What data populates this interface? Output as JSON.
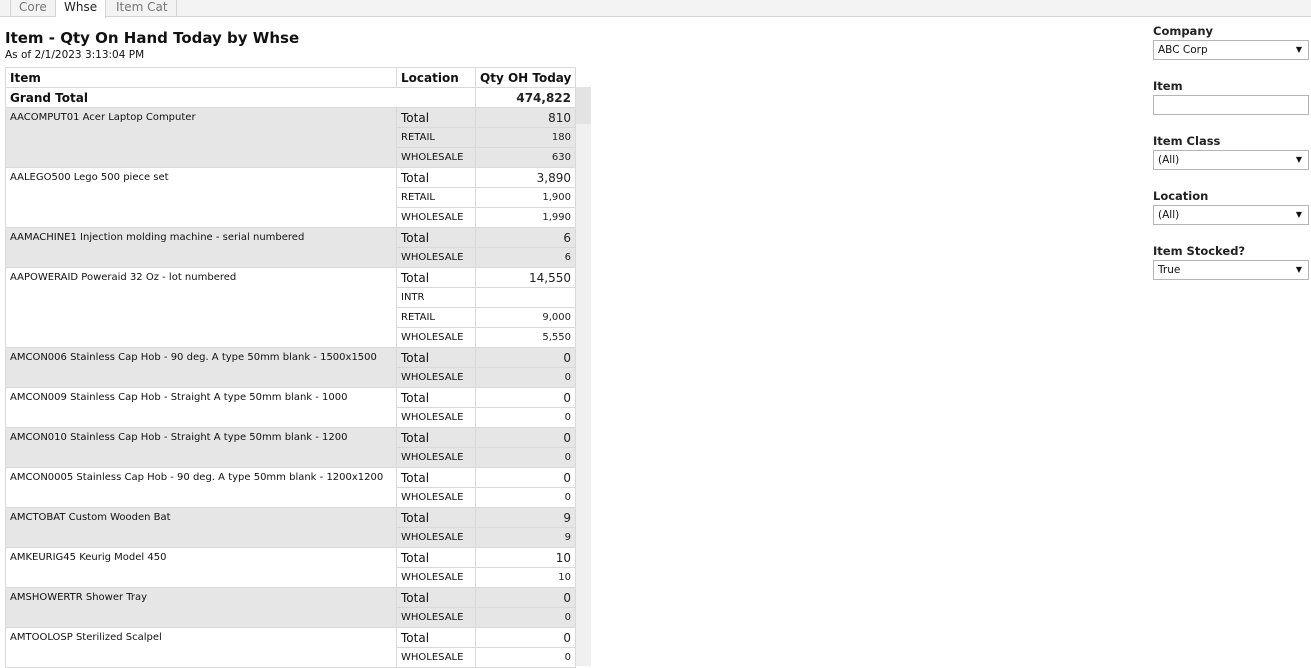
{
  "tabs": [
    {
      "label": "Core"
    },
    {
      "label": "Whse",
      "active": true
    },
    {
      "label": "Item Cat"
    }
  ],
  "report": {
    "title": "Item - Qty On Hand Today by Whse",
    "as_of": "As of  2/1/2023 3:13:04 PM"
  },
  "table": {
    "headers": {
      "item": "Item",
      "location": "Location",
      "qty": "Qty OH Today"
    },
    "grand_total": {
      "label": "Grand Total",
      "value": "474,822"
    },
    "groups": [
      {
        "item": "AACOMPUT01  Acer Laptop Computer",
        "rows": [
          [
            "Total",
            "810"
          ],
          [
            "RETAIL",
            "180"
          ],
          [
            "WHOLESALE",
            "630"
          ]
        ]
      },
      {
        "item": "AALEGO500  Lego 500 piece set",
        "rows": [
          [
            "Total",
            "3,890"
          ],
          [
            "RETAIL",
            "1,900"
          ],
          [
            "WHOLESALE",
            "1,990"
          ]
        ]
      },
      {
        "item": "AAMACHINE1  Injection molding machine - serial numbered",
        "rows": [
          [
            "Total",
            "6"
          ],
          [
            "WHOLESALE",
            "6"
          ]
        ]
      },
      {
        "item": "AAPOWERAID  Poweraid 32 Oz - lot numbered",
        "rows": [
          [
            "Total",
            "14,550"
          ],
          [
            "INTR",
            ""
          ],
          [
            "RETAIL",
            "9,000"
          ],
          [
            "WHOLESALE",
            "5,550"
          ]
        ]
      },
      {
        "item": "AMCON006  Stainless Cap Hob - 90 deg. A type 50mm blank - 1500x1500",
        "rows": [
          [
            "Total",
            "0"
          ],
          [
            "WHOLESALE",
            "0"
          ]
        ]
      },
      {
        "item": "AMCON009  Stainless Cap Hob - Straight A type 50mm blank - 1000",
        "rows": [
          [
            "Total",
            "0"
          ],
          [
            "WHOLESALE",
            "0"
          ]
        ]
      },
      {
        "item": "AMCON010  Stainless Cap Hob - Straight A type 50mm blank - 1200",
        "rows": [
          [
            "Total",
            "0"
          ],
          [
            "WHOLESALE",
            "0"
          ]
        ]
      },
      {
        "item": "AMCON0005  Stainless Cap Hob - 90 deg. A type 50mm blank - 1200x1200",
        "rows": [
          [
            "Total",
            "0"
          ],
          [
            "WHOLESALE",
            "0"
          ]
        ]
      },
      {
        "item": "AMCTOBAT  Custom Wooden Bat",
        "rows": [
          [
            "Total",
            "9"
          ],
          [
            "WHOLESALE",
            "9"
          ]
        ]
      },
      {
        "item": "AMKEURIG45  Keurig Model 450",
        "rows": [
          [
            "Total",
            "10"
          ],
          [
            "WHOLESALE",
            "10"
          ]
        ]
      },
      {
        "item": "AMSHOWERTR  Shower Tray",
        "rows": [
          [
            "Total",
            "0"
          ],
          [
            "WHOLESALE",
            "0"
          ]
        ]
      },
      {
        "item": "AMTOOLOSP  Sterilized Scalpel",
        "rows": [
          [
            "Total",
            "0"
          ],
          [
            "WHOLESALE",
            "0"
          ]
        ]
      }
    ]
  },
  "filters": {
    "company": {
      "label": "Company",
      "value": "ABC Corp"
    },
    "item": {
      "label": "Item",
      "value": ""
    },
    "item_class": {
      "label": "Item Class",
      "value": "(All)"
    },
    "location": {
      "label": "Location",
      "value": "(All)"
    },
    "item_stocked": {
      "label": "Item Stocked?",
      "value": "True"
    }
  },
  "icons": {
    "dropdown": "caret-down-icon"
  }
}
